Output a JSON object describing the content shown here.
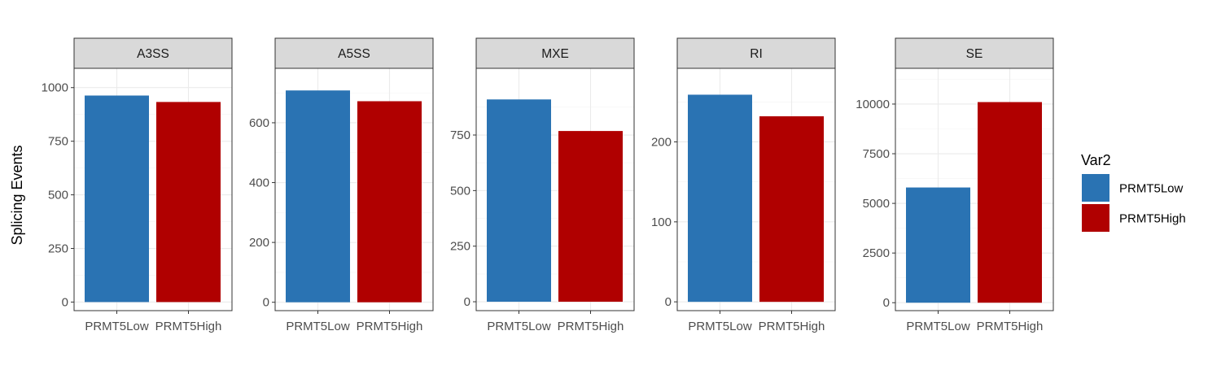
{
  "chart_data": {
    "type": "bar",
    "ylabel": "Splicing Events",
    "xlabel": "",
    "categories": [
      "PRMT5Low",
      "PRMT5High"
    ],
    "legend": {
      "title": "Var2",
      "position": "right",
      "items": [
        {
          "label": "PRMT5Low",
          "color": "#2a73b3"
        },
        {
          "label": "PRMT5High",
          "color": "#b00000"
        }
      ]
    },
    "grid": true,
    "facets": [
      {
        "label": "A3SS",
        "values": [
          963,
          933
        ],
        "ylim": [
          -40,
          1090
        ],
        "yticks": [
          0,
          250,
          500,
          750,
          1000
        ]
      },
      {
        "label": "A5SS",
        "values": [
          708,
          672
        ],
        "ylim": [
          -28,
          782
        ],
        "yticks": [
          0,
          200,
          400,
          600
        ]
      },
      {
        "label": "MXE",
        "values": [
          910,
          768
        ],
        "ylim": [
          -40,
          1050
        ],
        "yticks": [
          0,
          250,
          500,
          750
        ]
      },
      {
        "label": "RI",
        "values": [
          259,
          232
        ],
        "ylim": [
          -11,
          292
        ],
        "yticks": [
          0,
          100,
          200
        ]
      },
      {
        "label": "SE",
        "values": [
          5800,
          10100
        ],
        "ylim": [
          -400,
          11800
        ],
        "yticks": [
          0,
          2500,
          5000,
          7500,
          10000
        ]
      }
    ]
  }
}
